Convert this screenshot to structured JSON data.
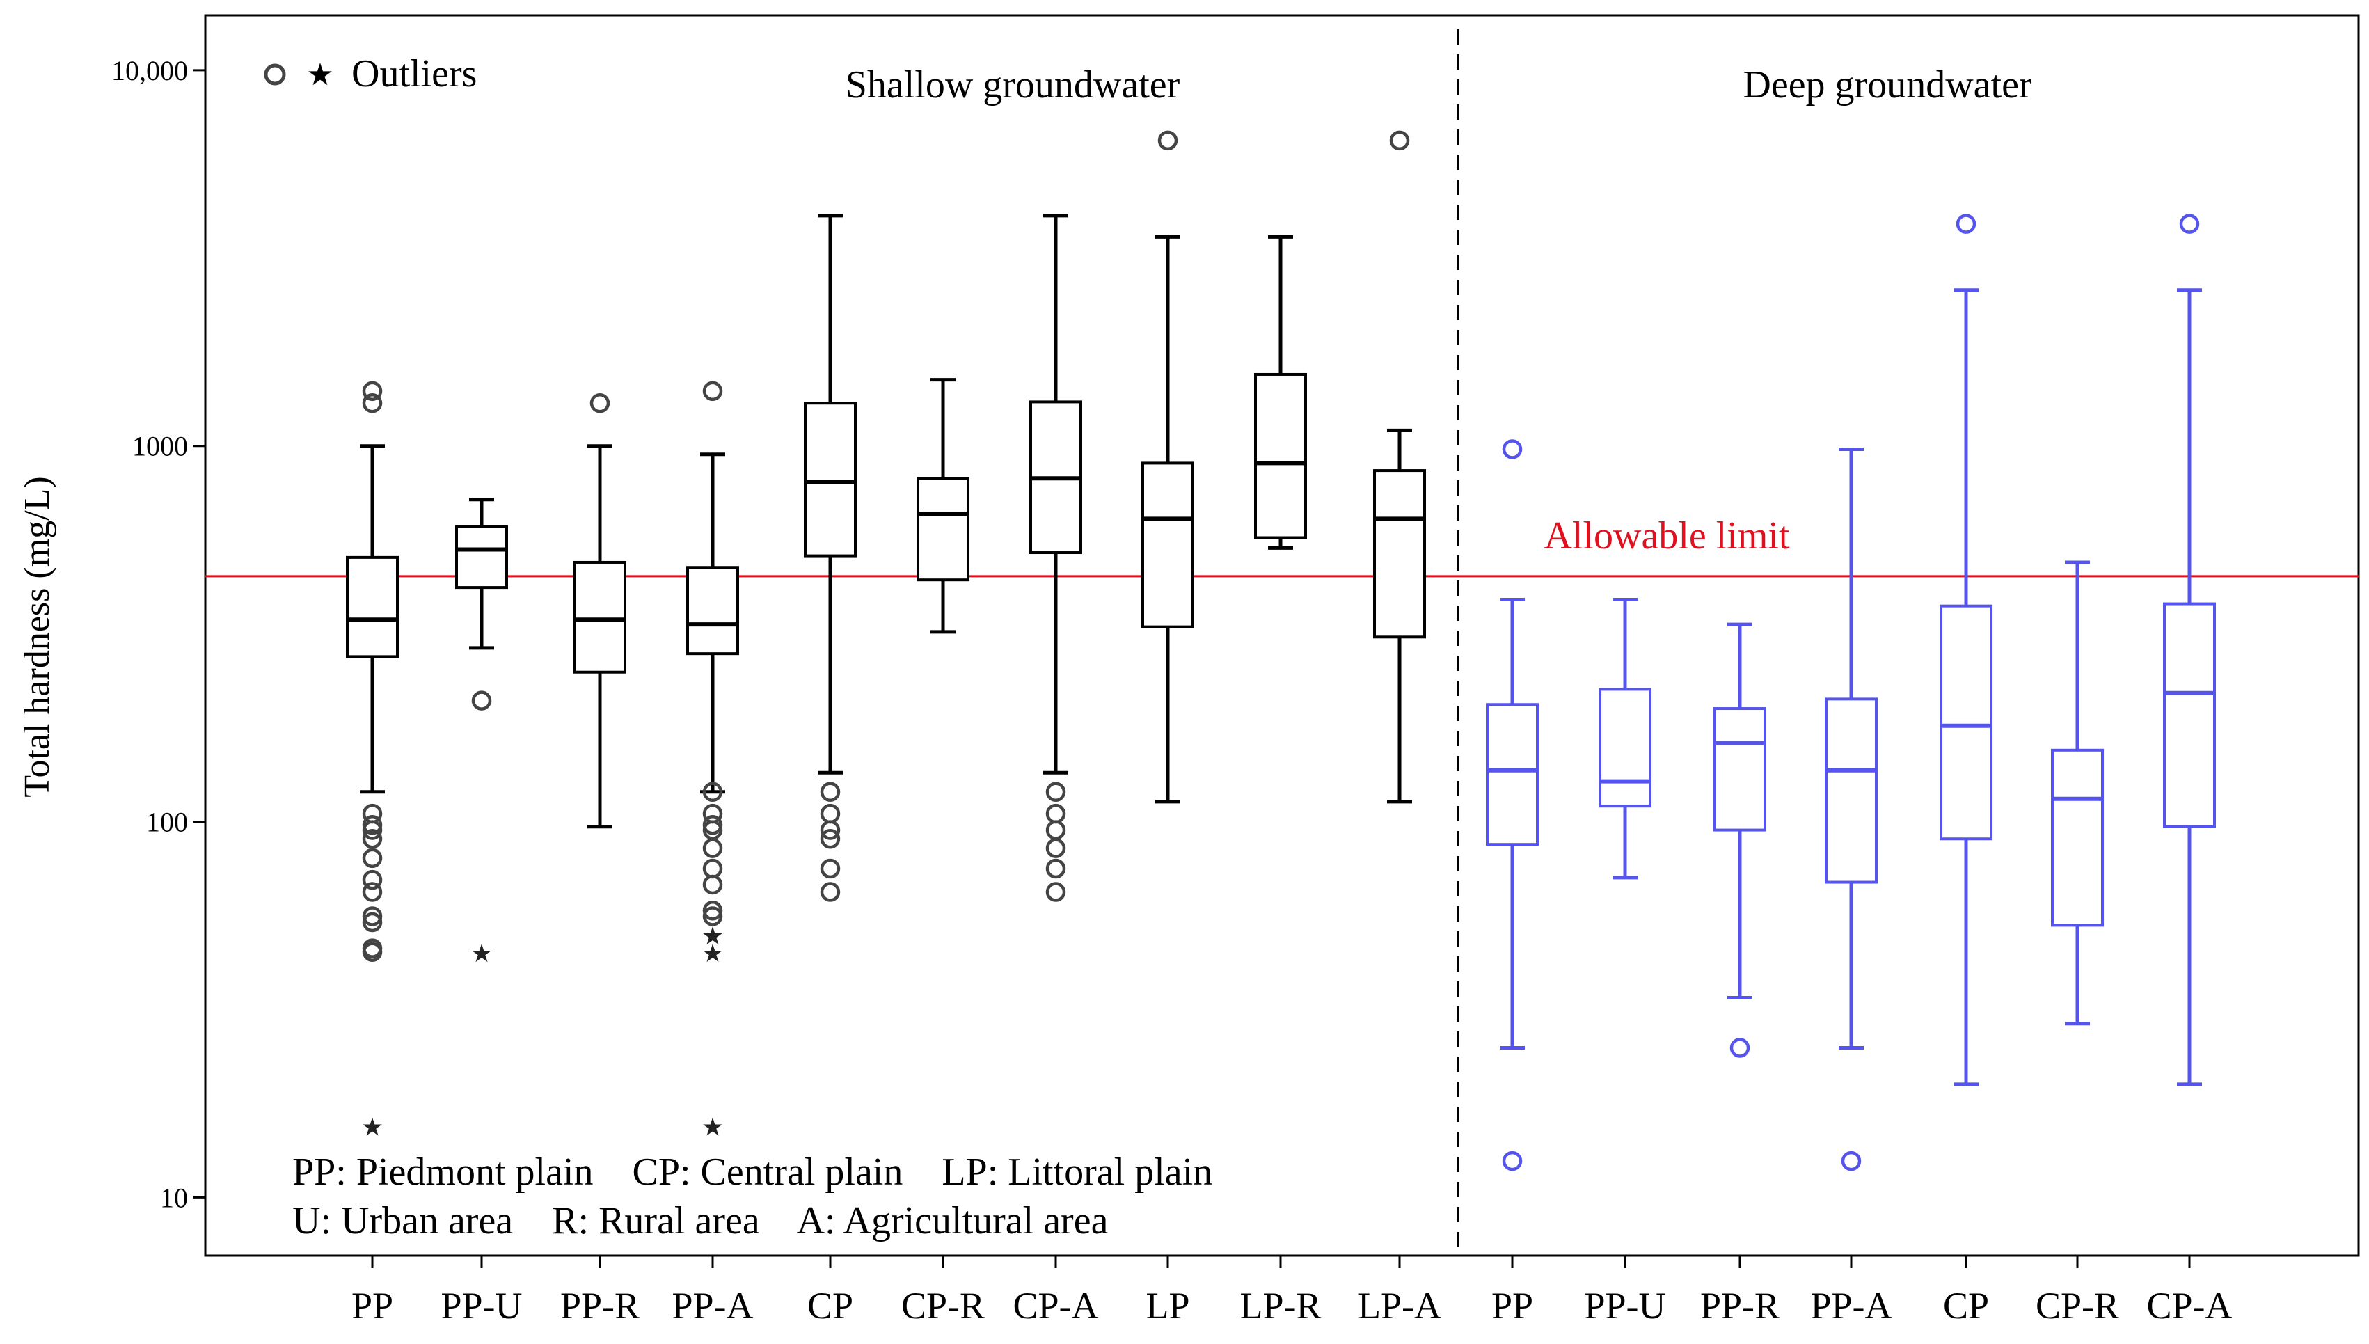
{
  "chart_data": {
    "type": "box",
    "ylabel": "Total hardness (mg/L)",
    "yscale": "log",
    "ylim": [
      7,
      14000
    ],
    "yticks": [
      {
        "value": 10,
        "label": "10"
      },
      {
        "value": 100,
        "label": "100"
      },
      {
        "value": 1000,
        "label": "1000"
      },
      {
        "value": 10000,
        "label": "10,000"
      }
    ],
    "legend_label": "Outliers",
    "reference_line": {
      "label": "Allowable limit",
      "value": 450,
      "color": "#e0101e"
    },
    "series_colors": {
      "shallow": "#000000",
      "deep": "#5555ee"
    },
    "groups": [
      {
        "name": "Shallow groundwater",
        "key": "shallow",
        "boxes": [
          {
            "label": "PP",
            "whisker_low": 120,
            "q1": 275,
            "median": 345,
            "q3": 505,
            "whisker_high": 1000,
            "outliers": [
              1300,
              1400,
              105,
              98,
              95,
              90,
              80,
              70,
              65,
              56,
              54,
              46,
              45
            ],
            "extremes": [
              15.5
            ]
          },
          {
            "label": "PP-U",
            "whisker_low": 290,
            "q1": 420,
            "median": 530,
            "q3": 610,
            "whisker_high": 720,
            "outliers": [
              210
            ],
            "extremes": [
              45
            ]
          },
          {
            "label": "PP-R",
            "whisker_low": 97,
            "q1": 250,
            "median": 345,
            "q3": 490,
            "whisker_high": 1000,
            "outliers": [
              1300
            ],
            "extremes": []
          },
          {
            "label": "PP-A",
            "whisker_low": 120,
            "q1": 280,
            "median": 335,
            "q3": 475,
            "whisker_high": 950,
            "outliers": [
              1400,
              120,
              105,
              98,
              95,
              85,
              75,
              68,
              58,
              56
            ],
            "extremes": [
              50,
              45,
              15.5
            ]
          },
          {
            "label": "CP",
            "whisker_low": 135,
            "q1": 510,
            "median": 800,
            "q3": 1300,
            "whisker_high": 4100,
            "outliers": [
              120,
              105,
              95,
              90,
              75,
              65
            ],
            "extremes": []
          },
          {
            "label": "CP-R",
            "whisker_low": 320,
            "q1": 440,
            "median": 660,
            "q3": 820,
            "whisker_high": 1500,
            "outliers": [],
            "extremes": []
          },
          {
            "label": "CP-A",
            "whisker_low": 135,
            "q1": 520,
            "median": 820,
            "q3": 1310,
            "whisker_high": 4100,
            "outliers": [
              120,
              105,
              95,
              85,
              75,
              65
            ],
            "extremes": []
          },
          {
            "label": "LP",
            "whisker_low": 113,
            "q1": 330,
            "median": 640,
            "q3": 900,
            "whisker_high": 3600,
            "outliers": [
              6500
            ],
            "extremes": []
          },
          {
            "label": "LP-R",
            "whisker_low": 535,
            "q1": 570,
            "median": 900,
            "q3": 1550,
            "whisker_high": 3600,
            "outliers": [],
            "extremes": []
          },
          {
            "label": "LP-A",
            "whisker_low": 113,
            "q1": 310,
            "median": 640,
            "q3": 860,
            "whisker_high": 1100,
            "outliers": [
              6500
            ],
            "extremes": []
          }
        ]
      },
      {
        "name": "Deep groundwater",
        "key": "deep",
        "boxes": [
          {
            "label": "PP",
            "whisker_low": 25,
            "q1": 87,
            "median": 137,
            "q3": 205,
            "whisker_high": 390,
            "outliers": [
              980,
              12.5
            ],
            "extremes": []
          },
          {
            "label": "PP-U",
            "whisker_low": 71,
            "q1": 110,
            "median": 128,
            "q3": 225,
            "whisker_high": 390,
            "outliers": [],
            "extremes": []
          },
          {
            "label": "PP-R",
            "whisker_low": 34,
            "q1": 95,
            "median": 162,
            "q3": 200,
            "whisker_high": 335,
            "outliers": [
              25
            ],
            "extremes": []
          },
          {
            "label": "PP-A",
            "whisker_low": 25,
            "q1": 69,
            "median": 137,
            "q3": 212,
            "whisker_high": 980,
            "outliers": [
              12.5
            ],
            "extremes": []
          },
          {
            "label": "CP",
            "whisker_low": 20,
            "q1": 90,
            "median": 180,
            "q3": 375,
            "whisker_high": 2600,
            "outliers": [
              3900
            ],
            "extremes": []
          },
          {
            "label": "CP-R",
            "whisker_low": 29,
            "q1": 53,
            "median": 115,
            "q3": 155,
            "whisker_high": 490,
            "outliers": [],
            "extremes": []
          },
          {
            "label": "CP-A",
            "whisker_low": 20,
            "q1": 97,
            "median": 220,
            "q3": 380,
            "whisker_high": 2600,
            "outliers": [
              3900
            ],
            "extremes": []
          }
        ]
      }
    ],
    "annotations": [
      "PP: Piedmont plain    CP: Central plain    LP: Littoral plain",
      "U: Urban area    R: Rural area    A: Agricultural area"
    ]
  }
}
